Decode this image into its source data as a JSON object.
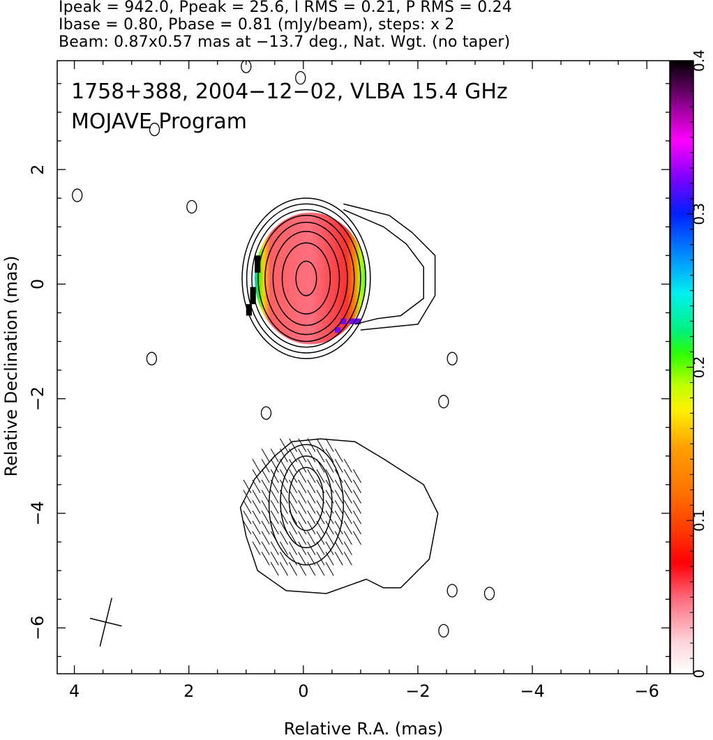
{
  "header": {
    "line1": "Ipeak = 942.0, Ppeak = 25.6, I RMS = 0.21, P RMS = 0.24",
    "line2": "Ibase = 0.80, Pbase = 0.81 (mJy/beam), steps: x 2",
    "line3": "Beam: 0.87x0.57 mas at −13.7 deg., Nat. Wgt. (no taper)"
  },
  "chart_data": {
    "type": "heatmap",
    "title": "1758+388, 2004−12−02, VLBA 15.4 GHz",
    "subtitle": "MOJAVE Program",
    "xlabel": "Relative R.A. (mas)",
    "ylabel": "Relative Declination (mas)",
    "xlim": [
      4.3,
      -6.4
    ],
    "ylim": [
      -6.8,
      3.9
    ],
    "x_ticks": [
      4,
      2,
      0,
      -2,
      -4,
      -6
    ],
    "x_tick_labels": [
      "4",
      "2",
      "0",
      "−2",
      "−4",
      "−6"
    ],
    "y_ticks": [
      2,
      0,
      -2,
      -4,
      -6
    ],
    "y_tick_labels": [
      "2",
      "0",
      "−2",
      "−4",
      "−6"
    ],
    "colorbar": {
      "range": [
        0,
        0.4
      ],
      "ticks": [
        0,
        0.1,
        0.2,
        0.3,
        0.4
      ],
      "tick_labels": [
        "0",
        "0.1",
        "0.2",
        "0.3",
        "0.4"
      ]
    },
    "core": {
      "center": [
        -0.05,
        0.1
      ],
      "contour_radii": [
        [
          0.18,
          0.3
        ],
        [
          0.42,
          0.62
        ],
        [
          0.58,
          0.82
        ],
        [
          0.72,
          0.98
        ],
        [
          0.84,
          1.1
        ],
        [
          0.95,
          1.2
        ],
        [
          1.04,
          1.3
        ],
        [
          1.12,
          1.4
        ]
      ],
      "polarization_extent": {
        "x": [
          -1.1,
          0.85
        ],
        "y": [
          -1.05,
          1.25
        ]
      }
    },
    "jet_extension_contours": [
      [
        [
          -0.7,
          1.4
        ],
        [
          -1.5,
          1.2
        ],
        [
          -1.9,
          0.9
        ],
        [
          -2.3,
          0.5
        ],
        [
          -2.3,
          -0.2
        ],
        [
          -2.0,
          -0.7
        ],
        [
          -1.5,
          -0.75
        ],
        [
          -1.0,
          -0.8
        ]
      ],
      [
        [
          -0.7,
          1.3
        ],
        [
          -1.4,
          1.0
        ],
        [
          -1.8,
          0.7
        ],
        [
          -2.1,
          0.3
        ],
        [
          -2.1,
          -0.25
        ],
        [
          -1.7,
          -0.55
        ],
        [
          -1.3,
          -0.6
        ],
        [
          -0.9,
          -0.7
        ]
      ]
    ],
    "lower_component": {
      "outer": [
        [
          0.5,
          -3.0
        ],
        [
          0.2,
          -2.75
        ],
        [
          -0.3,
          -2.7
        ],
        [
          -0.9,
          -2.75
        ],
        [
          -1.4,
          -3.05
        ],
        [
          -2.1,
          -3.5
        ],
        [
          -2.35,
          -4.0
        ],
        [
          -2.2,
          -4.8
        ],
        [
          -1.7,
          -5.3
        ],
        [
          -1.4,
          -5.3
        ],
        [
          -1.1,
          -5.15
        ],
        [
          -0.4,
          -5.4
        ],
        [
          0.3,
          -5.35
        ],
        [
          0.8,
          -5.0
        ],
        [
          1.0,
          -4.4
        ],
        [
          1.1,
          -3.9
        ],
        [
          0.85,
          -3.4
        ]
      ],
      "inner": [
        {
          "center": [
            -0.05,
            -3.85
          ],
          "rx": 0.65,
          "ry": 1.05
        },
        {
          "center": [
            -0.05,
            -3.8
          ],
          "rx": 0.45,
          "ry": 0.8
        },
        {
          "center": [
            -0.05,
            -3.75
          ],
          "rx": 0.3,
          "ry": 0.55
        }
      ],
      "evpa_region": {
        "x": [
          -1.1,
          1.05
        ],
        "y": [
          -5.15,
          -2.7
        ],
        "angle_deg": 30
      }
    },
    "small_contours": [
      [
        2.6,
        2.7
      ],
      [
        3.95,
        1.55
      ],
      [
        1.95,
        1.35
      ],
      [
        2.65,
        -1.3
      ],
      [
        0.65,
        -2.25
      ],
      [
        -2.6,
        -1.3
      ],
      [
        -2.45,
        -2.05
      ],
      [
        -2.6,
        -5.35
      ],
      [
        -3.25,
        -5.4
      ],
      [
        -2.45,
        -6.05
      ],
      [
        0.05,
        3.6
      ],
      [
        1.0,
        3.8
      ]
    ],
    "beam": {
      "center": [
        3.45,
        -5.9
      ],
      "major_mas": 0.87,
      "minor_mas": 0.57,
      "pa_deg": -13.7
    }
  }
}
